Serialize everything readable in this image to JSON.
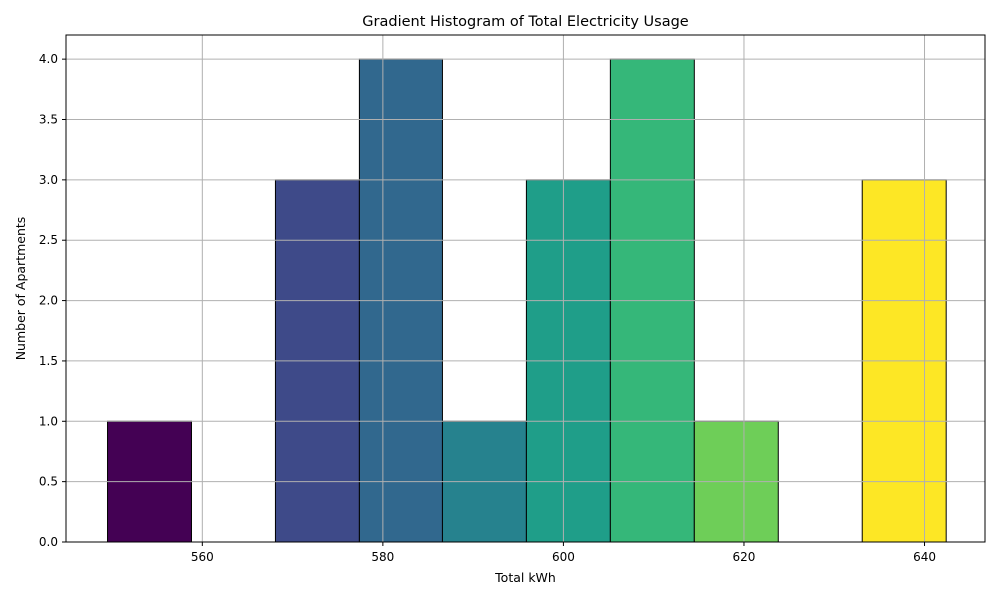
{
  "chart_data": {
    "type": "bar",
    "title": "Gradient Histogram of Total Electricity Usage",
    "xlabel": "Total kWh",
    "ylabel": "Number of Apartments",
    "xlim": [
      544.9,
      646.7
    ],
    "ylim": [
      0,
      4.2
    ],
    "xticks": [
      560,
      580,
      600,
      620,
      640
    ],
    "yticks": [
      0.0,
      0.5,
      1.0,
      1.5,
      2.0,
      2.5,
      3.0,
      3.5,
      4.0
    ],
    "ytick_labels": [
      "0.0",
      "0.5",
      "1.0",
      "1.5",
      "2.0",
      "2.5",
      "3.0",
      "3.5",
      "4.0"
    ],
    "grid": true,
    "bins": [
      {
        "x0": 549.5,
        "x1": 558.8,
        "count": 1,
        "color": "#440154"
      },
      {
        "x0": 558.8,
        "x1": 568.1,
        "count": 0,
        "color": "#482878"
      },
      {
        "x0": 568.1,
        "x1": 577.4,
        "count": 3,
        "color": "#3e4a89"
      },
      {
        "x0": 577.4,
        "x1": 586.6,
        "count": 4,
        "color": "#31688e"
      },
      {
        "x0": 586.6,
        "x1": 595.9,
        "count": 1,
        "color": "#26828e"
      },
      {
        "x0": 595.9,
        "x1": 605.2,
        "count": 3,
        "color": "#1f9e89"
      },
      {
        "x0": 605.2,
        "x1": 614.5,
        "count": 4,
        "color": "#35b779"
      },
      {
        "x0": 614.5,
        "x1": 623.8,
        "count": 1,
        "color": "#6ece58"
      },
      {
        "x0": 623.8,
        "x1": 633.1,
        "count": 0,
        "color": "#b5de2b"
      },
      {
        "x0": 633.1,
        "x1": 642.4,
        "count": 3,
        "color": "#fde725"
      }
    ]
  }
}
